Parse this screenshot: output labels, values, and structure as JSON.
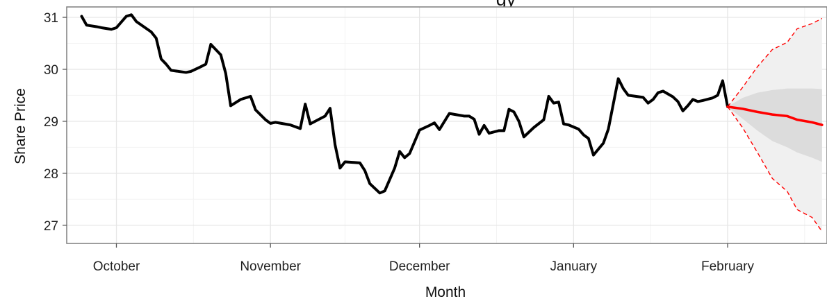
{
  "chart_data": {
    "type": "line",
    "title": "gy",
    "xlabel": "Month",
    "ylabel": "Share Price",
    "ylim": [
      26.65,
      31.2
    ],
    "xlim": [
      "2012-09-21",
      "2013-02-21"
    ],
    "x_ticks": [
      {
        "date": "2012-10-01",
        "label": "October"
      },
      {
        "date": "2012-11-01",
        "label": "November"
      },
      {
        "date": "2012-12-01",
        "label": "December"
      },
      {
        "date": "2013-01-01",
        "label": "January"
      },
      {
        "date": "2013-02-01",
        "label": "February"
      }
    ],
    "y_ticks": [
      27,
      28,
      29,
      30,
      31
    ],
    "grid": true,
    "legend": "none",
    "colors": {
      "history": "#000000",
      "forecast": "#ff0000",
      "band_outer": "#f0f0f0",
      "band_inner": "#dcdcdc",
      "panel_border": "#7f7f7f",
      "grid_major": "#e6e6e6",
      "grid_minor": "#f3f3f3"
    },
    "series": [
      {
        "role": "history",
        "points": [
          [
            "2012-09-24",
            31.02
          ],
          [
            "2012-09-25",
            30.85
          ],
          [
            "2012-09-27",
            30.82
          ],
          [
            "2012-09-28",
            30.8
          ],
          [
            "2012-09-30",
            30.77
          ],
          [
            "2012-10-01",
            30.8
          ],
          [
            "2012-10-03",
            31.02
          ],
          [
            "2012-10-04",
            31.05
          ],
          [
            "2012-10-05",
            30.92
          ],
          [
            "2012-10-08",
            30.72
          ],
          [
            "2012-10-09",
            30.6
          ],
          [
            "2012-10-10",
            30.2
          ],
          [
            "2012-10-11",
            30.1
          ],
          [
            "2012-10-12",
            29.98
          ],
          [
            "2012-10-15",
            29.94
          ],
          [
            "2012-10-16",
            29.96
          ],
          [
            "2012-10-18",
            30.05
          ],
          [
            "2012-10-19",
            30.1
          ],
          [
            "2012-10-20",
            30.48
          ],
          [
            "2012-10-22",
            30.28
          ],
          [
            "2012-10-23",
            29.92
          ],
          [
            "2012-10-24",
            29.3
          ],
          [
            "2012-10-26",
            29.42
          ],
          [
            "2012-10-28",
            29.48
          ],
          [
            "2012-10-29",
            29.22
          ],
          [
            "2012-10-31",
            29.03
          ],
          [
            "2012-11-01",
            28.96
          ],
          [
            "2012-11-02",
            28.98
          ],
          [
            "2012-11-05",
            28.93
          ],
          [
            "2012-11-07",
            28.86
          ],
          [
            "2012-11-08",
            29.33
          ],
          [
            "2012-11-09",
            28.95
          ],
          [
            "2012-11-12",
            29.1
          ],
          [
            "2012-11-13",
            29.25
          ],
          [
            "2012-11-14",
            28.55
          ],
          [
            "2012-11-15",
            28.1
          ],
          [
            "2012-11-16",
            28.22
          ],
          [
            "2012-11-19",
            28.2
          ],
          [
            "2012-11-20",
            28.05
          ],
          [
            "2012-11-21",
            27.8
          ],
          [
            "2012-11-23",
            27.62
          ],
          [
            "2012-11-24",
            27.66
          ],
          [
            "2012-11-26",
            28.1
          ],
          [
            "2012-11-27",
            28.42
          ],
          [
            "2012-11-28",
            28.3
          ],
          [
            "2012-11-29",
            28.38
          ],
          [
            "2012-12-01",
            28.83
          ],
          [
            "2012-12-03",
            28.92
          ],
          [
            "2012-12-04",
            28.97
          ],
          [
            "2012-12-05",
            28.84
          ],
          [
            "2012-12-07",
            29.15
          ],
          [
            "2012-12-10",
            29.1
          ],
          [
            "2012-12-11",
            29.1
          ],
          [
            "2012-12-12",
            29.04
          ],
          [
            "2012-12-13",
            28.75
          ],
          [
            "2012-12-14",
            28.92
          ],
          [
            "2012-12-15",
            28.77
          ],
          [
            "2012-12-17",
            28.82
          ],
          [
            "2012-12-18",
            28.82
          ],
          [
            "2012-12-19",
            29.23
          ],
          [
            "2012-12-20",
            29.18
          ],
          [
            "2012-12-21",
            29.0
          ],
          [
            "2012-12-22",
            28.7
          ],
          [
            "2012-12-24",
            28.88
          ],
          [
            "2012-12-26",
            29.03
          ],
          [
            "2012-12-27",
            29.48
          ],
          [
            "2012-12-28",
            29.35
          ],
          [
            "2012-12-29",
            29.37
          ],
          [
            "2012-12-30",
            28.95
          ],
          [
            "2012-12-31",
            28.93
          ],
          [
            "2013-01-02",
            28.85
          ],
          [
            "2013-01-03",
            28.74
          ],
          [
            "2013-01-04",
            28.67
          ],
          [
            "2013-01-05",
            28.35
          ],
          [
            "2013-01-07",
            28.58
          ],
          [
            "2013-01-08",
            28.85
          ],
          [
            "2013-01-10",
            29.82
          ],
          [
            "2013-01-11",
            29.63
          ],
          [
            "2013-01-12",
            29.5
          ],
          [
            "2013-01-15",
            29.46
          ],
          [
            "2013-01-16",
            29.35
          ],
          [
            "2013-01-17",
            29.42
          ],
          [
            "2013-01-18",
            29.55
          ],
          [
            "2013-01-19",
            29.58
          ],
          [
            "2013-01-21",
            29.47
          ],
          [
            "2013-01-22",
            29.38
          ],
          [
            "2013-01-23",
            29.2
          ],
          [
            "2013-01-24",
            29.3
          ],
          [
            "2013-01-25",
            29.42
          ],
          [
            "2013-01-26",
            29.38
          ],
          [
            "2013-01-27",
            29.4
          ],
          [
            "2013-01-29",
            29.45
          ],
          [
            "2013-01-30",
            29.5
          ],
          [
            "2013-01-31",
            29.78
          ],
          [
            "2013-02-01",
            29.28
          ]
        ]
      },
      {
        "role": "forecast",
        "points": [
          [
            "2013-02-01",
            29.28
          ],
          [
            "2013-02-04",
            29.24
          ],
          [
            "2013-02-07",
            29.18
          ],
          [
            "2013-02-10",
            29.13
          ],
          [
            "2013-02-13",
            29.1
          ],
          [
            "2013-02-15",
            29.03
          ],
          [
            "2013-02-18",
            28.98
          ],
          [
            "2013-02-20",
            28.93
          ]
        ]
      }
    ],
    "bands": [
      {
        "level": "outer",
        "upper": [
          [
            "2013-02-01",
            29.28
          ],
          [
            "2013-02-04",
            29.65
          ],
          [
            "2013-02-07",
            30.05
          ],
          [
            "2013-02-10",
            30.38
          ],
          [
            "2013-02-13",
            30.52
          ],
          [
            "2013-02-15",
            30.78
          ],
          [
            "2013-02-18",
            30.88
          ],
          [
            "2013-02-20",
            30.98
          ]
        ],
        "lower": [
          [
            "2013-02-01",
            29.28
          ],
          [
            "2013-02-04",
            28.88
          ],
          [
            "2013-02-07",
            28.4
          ],
          [
            "2013-02-10",
            27.9
          ],
          [
            "2013-02-13",
            27.65
          ],
          [
            "2013-02-15",
            27.3
          ],
          [
            "2013-02-18",
            27.15
          ],
          [
            "2013-02-20",
            26.88
          ]
        ]
      },
      {
        "level": "inner",
        "upper": [
          [
            "2013-02-01",
            29.28
          ],
          [
            "2013-02-04",
            29.45
          ],
          [
            "2013-02-07",
            29.55
          ],
          [
            "2013-02-10",
            29.6
          ],
          [
            "2013-02-13",
            29.63
          ],
          [
            "2013-02-15",
            29.63
          ],
          [
            "2013-02-18",
            29.63
          ],
          [
            "2013-02-20",
            29.62
          ]
        ],
        "lower": [
          [
            "2013-02-01",
            29.28
          ],
          [
            "2013-02-04",
            29.05
          ],
          [
            "2013-02-07",
            28.82
          ],
          [
            "2013-02-10",
            28.62
          ],
          [
            "2013-02-13",
            28.5
          ],
          [
            "2013-02-15",
            28.4
          ],
          [
            "2013-02-18",
            28.3
          ],
          [
            "2013-02-20",
            28.22
          ]
        ]
      }
    ]
  }
}
